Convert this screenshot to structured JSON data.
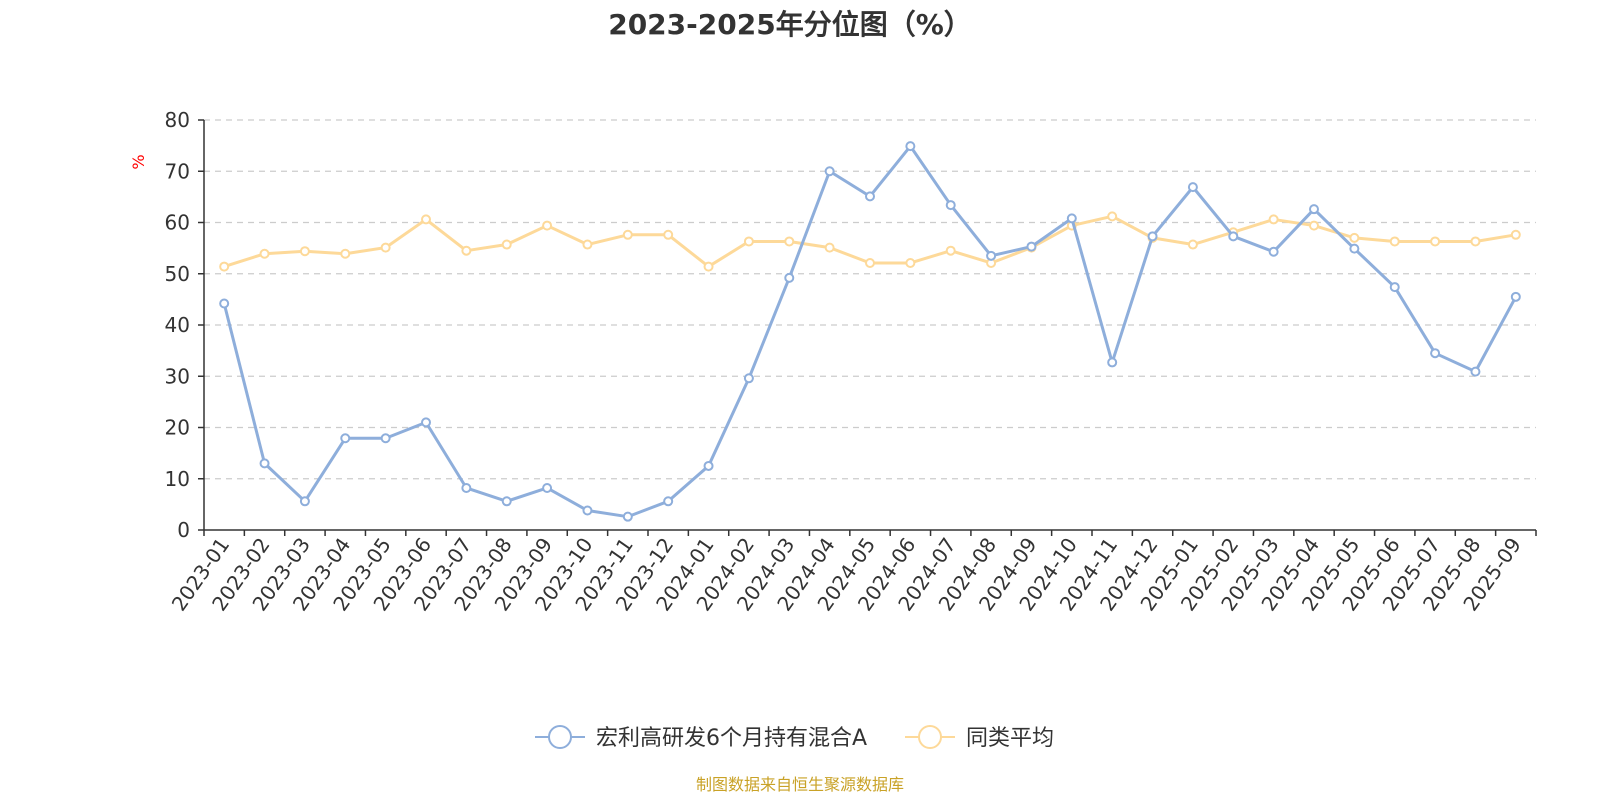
{
  "chart_data": {
    "type": "line",
    "title": "2023-2025年分位图（%）",
    "ylabel": "%",
    "xlabel": "",
    "ylim": [
      0,
      80
    ],
    "yticks": [
      0,
      10,
      20,
      30,
      40,
      50,
      60,
      70,
      80
    ],
    "grid": true,
    "legend_position": "bottom",
    "categories": [
      "2023-01",
      "2023-02",
      "2023-03",
      "2023-04",
      "2023-05",
      "2023-06",
      "2023-07",
      "2023-08",
      "2023-09",
      "2023-10",
      "2023-11",
      "2023-12",
      "2024-01",
      "2024-02",
      "2024-03",
      "2024-04",
      "2024-05",
      "2024-06",
      "2024-07",
      "2024-08",
      "2024-09",
      "2024-10",
      "2024-11",
      "2024-12",
      "2025-01",
      "2025-02",
      "2025-03",
      "2025-04",
      "2025-05",
      "2025-06",
      "2025-07",
      "2025-08",
      "2025-09"
    ],
    "series": [
      {
        "name": "宏利高研发6个月持有混合A",
        "color": "#8eaedb",
        "values": [
          44.2,
          13.0,
          5.6,
          17.9,
          17.9,
          21.0,
          8.2,
          5.6,
          8.2,
          3.8,
          2.6,
          5.6,
          12.5,
          29.6,
          49.2,
          70.0,
          65.1,
          74.9,
          63.4,
          53.5,
          55.3,
          60.8,
          32.7,
          57.3,
          66.9,
          57.3,
          54.3,
          62.6,
          54.9,
          47.4,
          34.5,
          30.9,
          45.5
        ]
      },
      {
        "name": "同类平均",
        "color": "#fdd999",
        "values": [
          51.4,
          53.9,
          54.4,
          53.9,
          55.1,
          60.6,
          54.5,
          55.7,
          59.4,
          55.7,
          57.6,
          57.6,
          51.4,
          56.3,
          56.3,
          55.1,
          52.1,
          52.1,
          54.5,
          52.1,
          55.1,
          59.4,
          61.2,
          57.0,
          55.7,
          58.1,
          60.6,
          59.4,
          57.0,
          56.3,
          56.3,
          56.3,
          57.6
        ]
      }
    ]
  },
  "colors": {
    "axis": "#333333",
    "grid": "#cccccc",
    "unit_label": "#ff0000",
    "source_text": "#c9a227"
  },
  "source": "制图数据来自恒生聚源数据库"
}
